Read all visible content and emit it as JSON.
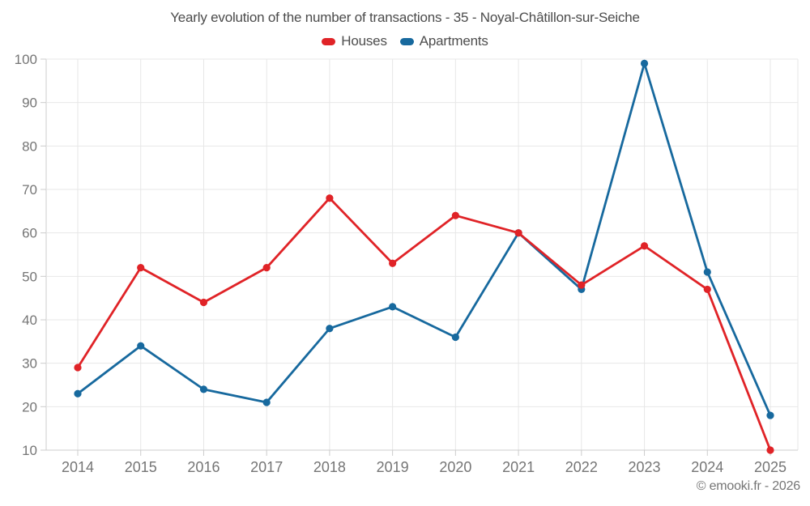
{
  "title": "Yearly evolution of the number of transactions - 35 - Noyal-Châtillon-sur-Seiche",
  "footer": "© emooki.fr - 2026",
  "chart_data": {
    "type": "line",
    "title": "Yearly evolution of the number of transactions - 35 - Noyal-Châtillon-sur-Seiche",
    "categories": [
      "2014",
      "2015",
      "2016",
      "2017",
      "2018",
      "2019",
      "2020",
      "2021",
      "2022",
      "2023",
      "2024",
      "2025"
    ],
    "series": [
      {
        "name": "Houses",
        "color": "#e02327",
        "values": [
          29,
          52,
          44,
          52,
          68,
          53,
          64,
          60,
          48,
          57,
          47,
          10
        ]
      },
      {
        "name": "Apartments",
        "color": "#17699e",
        "values": [
          23,
          34,
          24,
          21,
          38,
          43,
          36,
          60,
          47,
          99,
          51,
          18
        ]
      }
    ],
    "xlabel": "",
    "ylabel": "",
    "ylim": [
      10,
      100
    ],
    "ytick_step": 10,
    "grid": true,
    "legend_position": "top",
    "grid_color": "#e7e7e7",
    "axis_color": "#cccccc",
    "tick_label_color": "#757575"
  }
}
